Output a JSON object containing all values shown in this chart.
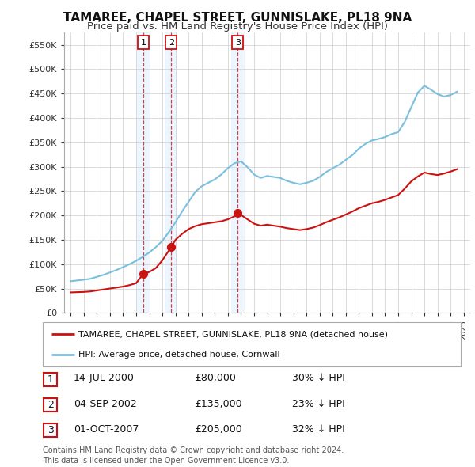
{
  "title": "TAMAREE, CHAPEL STREET, GUNNISLAKE, PL18 9NA",
  "subtitle": "Price paid vs. HM Land Registry's House Price Index (HPI)",
  "title_fontsize": 11,
  "subtitle_fontsize": 9.5,
  "background_color": "#ffffff",
  "grid_color": "#cccccc",
  "hpi_color": "#7abfde",
  "price_color": "#cc1111",
  "sale_marker_color": "#cc1111",
  "sale_shade_color": "#ddeeff",
  "ylim": [
    0,
    575000
  ],
  "yticks": [
    0,
    50000,
    100000,
    150000,
    200000,
    250000,
    300000,
    350000,
    400000,
    450000,
    500000,
    550000
  ],
  "ytick_labels": [
    "£0",
    "£50K",
    "£100K",
    "£150K",
    "£200K",
    "£250K",
    "£300K",
    "£350K",
    "£400K",
    "£450K",
    "£500K",
    "£550K"
  ],
  "sales": [
    {
      "label": "1",
      "year": 2000.54,
      "price": 80000
    },
    {
      "label": "2",
      "year": 2002.67,
      "price": 135000
    },
    {
      "label": "3",
      "year": 2007.75,
      "price": 205000
    }
  ],
  "legend_entries": [
    "TAMAREE, CHAPEL STREET, GUNNISLAKE, PL18 9NA (detached house)",
    "HPI: Average price, detached house, Cornwall"
  ],
  "table_rows": [
    {
      "num": "1",
      "date": "14-JUL-2000",
      "price": "£80,000",
      "hpi": "30% ↓ HPI"
    },
    {
      "num": "2",
      "date": "04-SEP-2002",
      "price": "£135,000",
      "hpi": "23% ↓ HPI"
    },
    {
      "num": "3",
      "date": "01-OCT-2007",
      "price": "£205,000",
      "hpi": "32% ↓ HPI"
    }
  ],
  "footnote": "Contains HM Land Registry data © Crown copyright and database right 2024.\nThis data is licensed under the Open Government Licence v3.0.",
  "years_hpi": [
    1995.0,
    1995.5,
    1996.0,
    1996.5,
    1997.0,
    1997.5,
    1998.0,
    1998.5,
    1999.0,
    1999.5,
    2000.0,
    2000.5,
    2001.0,
    2001.5,
    2002.0,
    2002.5,
    2003.0,
    2003.5,
    2004.0,
    2004.5,
    2005.0,
    2005.5,
    2006.0,
    2006.5,
    2007.0,
    2007.5,
    2008.0,
    2008.5,
    2009.0,
    2009.5,
    2010.0,
    2010.5,
    2011.0,
    2011.5,
    2012.0,
    2012.5,
    2013.0,
    2013.5,
    2014.0,
    2014.5,
    2015.0,
    2015.5,
    2016.0,
    2016.5,
    2017.0,
    2017.5,
    2018.0,
    2018.5,
    2019.0,
    2019.5,
    2020.0,
    2020.5,
    2021.0,
    2021.5,
    2022.0,
    2022.5,
    2023.0,
    2023.5,
    2024.0,
    2024.5
  ],
  "hpi_values": [
    65000,
    66500,
    68000,
    70000,
    74000,
    78000,
    83000,
    88000,
    94000,
    100000,
    107000,
    115000,
    124000,
    135000,
    148000,
    166000,
    186000,
    208000,
    228000,
    248000,
    260000,
    267000,
    274000,
    284000,
    297000,
    307000,
    311000,
    299000,
    284000,
    277000,
    281000,
    279000,
    277000,
    271000,
    267000,
    264000,
    267000,
    271000,
    279000,
    289000,
    297000,
    304000,
    314000,
    324000,
    337000,
    347000,
    354000,
    357000,
    361000,
    367000,
    371000,
    392000,
    422000,
    452000,
    466000,
    458000,
    449000,
    444000,
    447000,
    454000
  ],
  "years_price": [
    1995.0,
    1995.5,
    1996.0,
    1996.5,
    1997.0,
    1997.5,
    1998.0,
    1998.5,
    1999.0,
    1999.5,
    2000.0,
    2000.54,
    2001.0,
    2001.5,
    2002.0,
    2002.67,
    2003.0,
    2003.5,
    2004.0,
    2004.5,
    2005.0,
    2005.5,
    2006.0,
    2006.5,
    2007.0,
    2007.5,
    2007.75,
    2008.0,
    2008.5,
    2009.0,
    2009.5,
    2010.0,
    2010.5,
    2011.0,
    2011.5,
    2012.0,
    2012.5,
    2013.0,
    2013.5,
    2014.0,
    2014.5,
    2015.0,
    2015.5,
    2016.0,
    2016.5,
    2017.0,
    2017.5,
    2018.0,
    2018.5,
    2019.0,
    2019.5,
    2020.0,
    2020.5,
    2021.0,
    2021.5,
    2022.0,
    2022.5,
    2023.0,
    2023.5,
    2024.0,
    2024.5
  ],
  "price_values": [
    42000,
    42500,
    43000,
    44000,
    46000,
    48000,
    50000,
    52000,
    54000,
    57000,
    61000,
    80000,
    84000,
    92000,
    108000,
    135000,
    150000,
    162000,
    172000,
    178000,
    182000,
    184000,
    186000,
    188000,
    192000,
    198000,
    205000,
    201000,
    192000,
    183000,
    179000,
    181000,
    179000,
    177000,
    174000,
    172000,
    170000,
    172000,
    175000,
    180000,
    186000,
    191000,
    196000,
    202000,
    208000,
    215000,
    220000,
    225000,
    228000,
    232000,
    237000,
    242000,
    255000,
    270000,
    280000,
    288000,
    285000,
    283000,
    286000,
    290000,
    295000
  ]
}
